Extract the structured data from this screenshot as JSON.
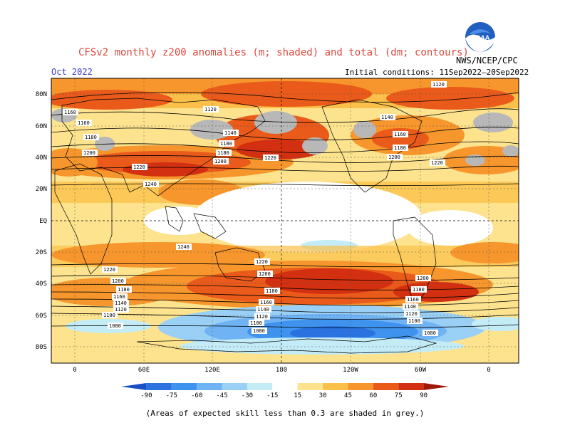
{
  "title": "CFSv2 monthly z200 anomalies (m; shaded) and total (dm; contours)",
  "month": "Oct 2022",
  "initial_conditions": "Initial conditions: 11Sep2022–20Sep2022",
  "agency": "NWS/NCEP/CPC",
  "logo_text": "NOAA",
  "footnote": "(Areas of expected skill less than 0.3 are shaded in grey.)",
  "lat_labels": [
    "80N",
    "60N",
    "40N",
    "20N",
    "EQ",
    "20S",
    "40S",
    "60S",
    "80S"
  ],
  "lon_labels": [
    "0",
    "60E",
    "120E",
    "180",
    "120W",
    "60W",
    "0"
  ],
  "colorbar": {
    "ticks": [
      "-90",
      "-75",
      "-60",
      "-45",
      "-30",
      "-15",
      "15",
      "30",
      "45",
      "60",
      "75",
      "90"
    ],
    "colors": [
      "#1a4fc4",
      "#2a72e0",
      "#3f93ee",
      "#6fb3f5",
      "#9ad0f6",
      "#c4ecf7",
      "#ffffff",
      "#fde38e",
      "#fbc04a",
      "#f6962c",
      "#ea5a1a",
      "#d23010",
      "#9e1a0a"
    ]
  },
  "contour_labels": [
    {
      "id": "c1120a",
      "text": "1120"
    },
    {
      "id": "c1120b",
      "text": "1120"
    },
    {
      "id": "c1140a",
      "text": "1140"
    },
    {
      "id": "c1140b",
      "text": "1140"
    },
    {
      "id": "c1160a",
      "text": "1160"
    },
    {
      "id": "c1160b",
      "text": "1160"
    },
    {
      "id": "c1180a",
      "text": "1180"
    },
    {
      "id": "c1180b",
      "text": "1180"
    },
    {
      "id": "c1180c",
      "text": "1180"
    },
    {
      "id": "c1180d",
      "text": "1180"
    },
    {
      "id": "c1200a",
      "text": "1200"
    },
    {
      "id": "c1200b",
      "text": "1200"
    },
    {
      "id": "c1200c",
      "text": "1200"
    },
    {
      "id": "c1220a",
      "text": "1220"
    },
    {
      "id": "c1220b",
      "text": "1220"
    },
    {
      "id": "c1220c",
      "text": "1220"
    },
    {
      "id": "c1240a",
      "text": "1240"
    },
    {
      "id": "c1160c",
      "text": "1160"
    },
    {
      "id": "s1240",
      "text": "1240"
    },
    {
      "id": "s1220a",
      "text": "1220"
    },
    {
      "id": "s1220b",
      "text": "1220"
    },
    {
      "id": "s1200a",
      "text": "1200"
    },
    {
      "id": "s1200b",
      "text": "1200"
    },
    {
      "id": "s1200c",
      "text": "1200"
    },
    {
      "id": "s1180a",
      "text": "1180"
    },
    {
      "id": "s1180b",
      "text": "1180"
    },
    {
      "id": "s1180c",
      "text": "1180"
    },
    {
      "id": "s1160a",
      "text": "1160"
    },
    {
      "id": "s1160b",
      "text": "1160"
    },
    {
      "id": "s1160c",
      "text": "1160"
    },
    {
      "id": "s1140a",
      "text": "1140"
    },
    {
      "id": "s1140b",
      "text": "1140"
    },
    {
      "id": "s1140c",
      "text": "1140"
    },
    {
      "id": "s1120a",
      "text": "1120"
    },
    {
      "id": "s1120b",
      "text": "1120"
    },
    {
      "id": "s1120c",
      "text": "1120"
    },
    {
      "id": "s1100a",
      "text": "1100"
    },
    {
      "id": "s1100b",
      "text": "1100"
    },
    {
      "id": "s1100c",
      "text": "1100"
    },
    {
      "id": "s1080a",
      "text": "1080"
    },
    {
      "id": "s1080b",
      "text": "1080"
    },
    {
      "id": "s1080c",
      "text": "1080"
    }
  ]
}
